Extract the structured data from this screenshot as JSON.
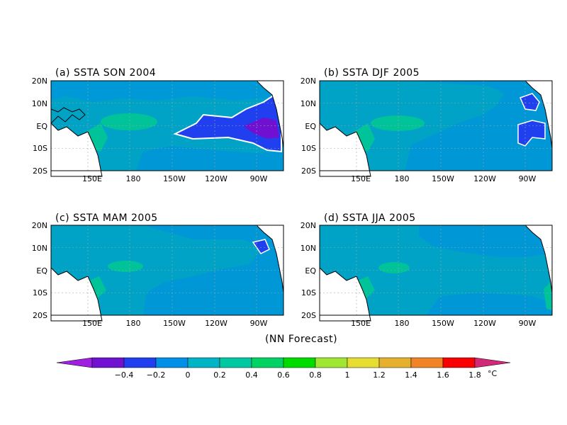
{
  "figure": {
    "footer": "(NN Forecast)"
  },
  "chart_data": [
    {
      "type": "heatmap",
      "title": "(a) SSTA SON 2004",
      "lon_ticks": [
        "150E",
        "180",
        "150W",
        "120W",
        "90W"
      ],
      "lat_ticks": [
        "20N",
        "10N",
        "EQ",
        "10S",
        "20S"
      ],
      "grid": true
    },
    {
      "type": "heatmap",
      "title": "(b) SSTA DJF 2005",
      "lon_ticks": [
        "150E",
        "180",
        "150W",
        "120W",
        "90W"
      ],
      "lat_ticks": [
        "20N",
        "10N",
        "EQ",
        "10S",
        "20S"
      ],
      "grid": true
    },
    {
      "type": "heatmap",
      "title": "(c) SSTA MAM 2005",
      "lon_ticks": [
        "150E",
        "180",
        "150W",
        "120W",
        "90W"
      ],
      "lat_ticks": [
        "20N",
        "10N",
        "EQ",
        "10S",
        "20S"
      ],
      "grid": true
    },
    {
      "type": "heatmap",
      "title": "(d) SSTA JJA 2005",
      "lon_ticks": [
        "150E",
        "180",
        "150W",
        "120W",
        "90W"
      ],
      "lat_ticks": [
        "20N",
        "10N",
        "EQ",
        "10S",
        "20S"
      ],
      "grid": true
    }
  ],
  "colorbar": {
    "colors": [
      "#a020e0",
      "#7010d0",
      "#2040f0",
      "#0090e8",
      "#00b4c8",
      "#00c8a0",
      "#00d264",
      "#00dc00",
      "#a0e632",
      "#e6dc32",
      "#e6af2d",
      "#f08228",
      "#fa0000",
      "#d22878"
    ],
    "labels": [
      "-0.4",
      "-0.2",
      "0",
      "0.2",
      "0.4",
      "0.6",
      "0.8",
      "1",
      "1.2",
      "1.4",
      "1.6",
      "1.8"
    ],
    "unit": "°C"
  }
}
